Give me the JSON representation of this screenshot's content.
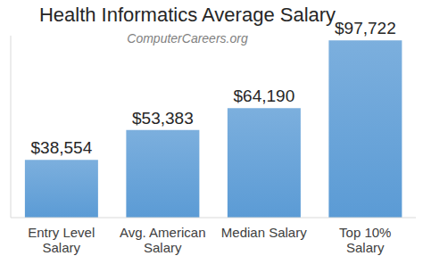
{
  "chart_data": {
    "type": "bar",
    "title": "Health Informatics Average Salary",
    "subtitle": "ComputerCareers.org",
    "categories": [
      "Entry Level Salary",
      "Avg. American Salary",
      "Median Salary",
      "Top 10% Salary"
    ],
    "values": [
      38554,
      53383,
      64190,
      97722
    ],
    "value_labels": [
      "$38,554",
      "$53,383",
      "$64,190",
      "$97,722"
    ],
    "color": "#5b9bd5",
    "ylim": [
      10000,
      100000
    ],
    "data_labels": true,
    "tick_labels": "x",
    "grid": false
  }
}
